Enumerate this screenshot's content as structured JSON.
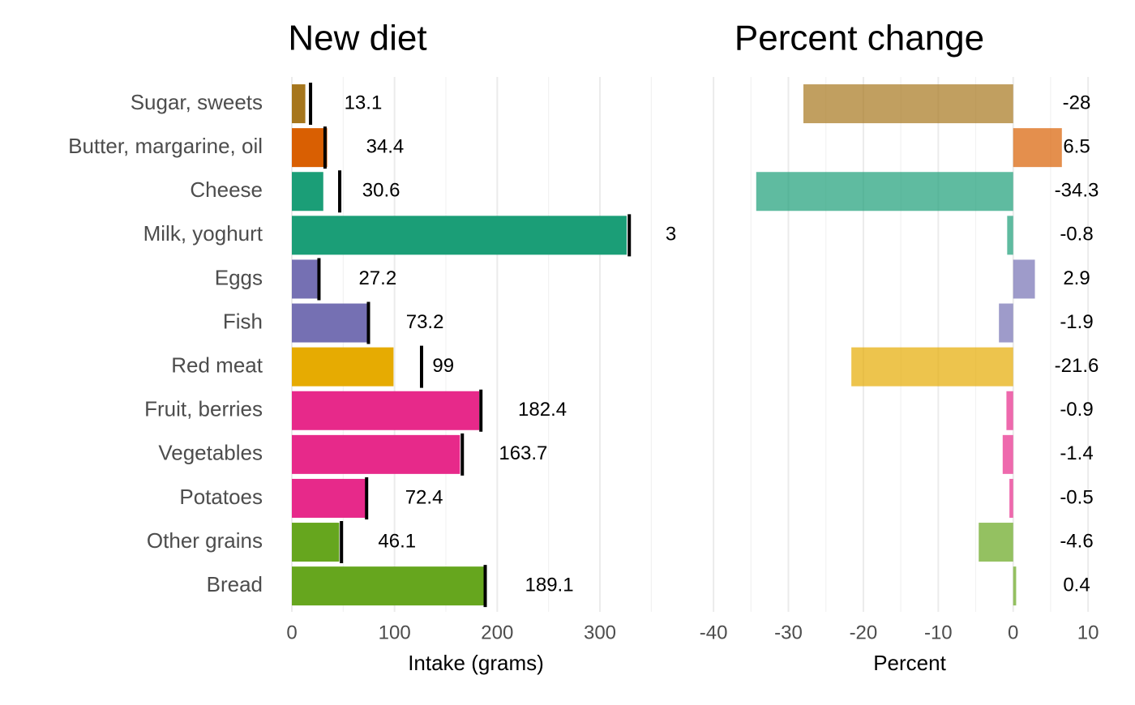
{
  "chart_data": [
    {
      "type": "bar",
      "title": "New diet",
      "x_label": "Intake (grams)",
      "categories": [
        "Sugar, sweets",
        "Butter, margarine, oil",
        "Cheese",
        "Milk, yoghurt",
        "Eggs",
        "Fish",
        "Red meat",
        "Fruit, berries",
        "Vegetables",
        "Potatoes",
        "Other grains",
        "Bread"
      ],
      "values": [
        13.1,
        34.4,
        30.6,
        326,
        27.2,
        73.2,
        99,
        182.4,
        163.7,
        72.4,
        46.1,
        189.1
      ],
      "original_values": [
        18.2,
        32.3,
        46.6,
        328.6,
        26.4,
        74.6,
        126.3,
        184.1,
        166,
        72.8,
        48.3,
        188.3
      ],
      "colors": [
        "#a6761d",
        "#d95f02",
        "#1b9e77",
        "#1b9e77",
        "#7570b3",
        "#7570b3",
        "#e6ab02",
        "#e7298a",
        "#e7298a",
        "#e7298a",
        "#66a61e",
        "#66a61e"
      ],
      "opacity": 1,
      "xlim": [
        0,
        375
      ],
      "xticks": [
        0,
        100,
        200,
        300
      ],
      "minor_xticks": [
        50,
        150,
        250,
        350
      ],
      "grid": true
    },
    {
      "type": "bar",
      "title": "Percent change",
      "x_label": "Percent",
      "values": [
        -28,
        6.5,
        -34.3,
        -0.8,
        2.9,
        -1.9,
        -21.6,
        -0.9,
        -1.4,
        -0.5,
        -4.6,
        0.4
      ],
      "colors": [
        "#a6761d",
        "#d95f02",
        "#1b9e77",
        "#1b9e77",
        "#7570b3",
        "#7570b3",
        "#e6ab02",
        "#e7298a",
        "#e7298a",
        "#e7298a",
        "#66a61e",
        "#66a61e"
      ],
      "opacity": 0.7,
      "xlim": [
        -42.5,
        11.5
      ],
      "xticks": [
        -40,
        -30,
        -20,
        -10,
        0,
        10
      ],
      "minor_xticks": [
        -35,
        -25,
        -15,
        -5,
        5
      ],
      "grid": true
    }
  ]
}
